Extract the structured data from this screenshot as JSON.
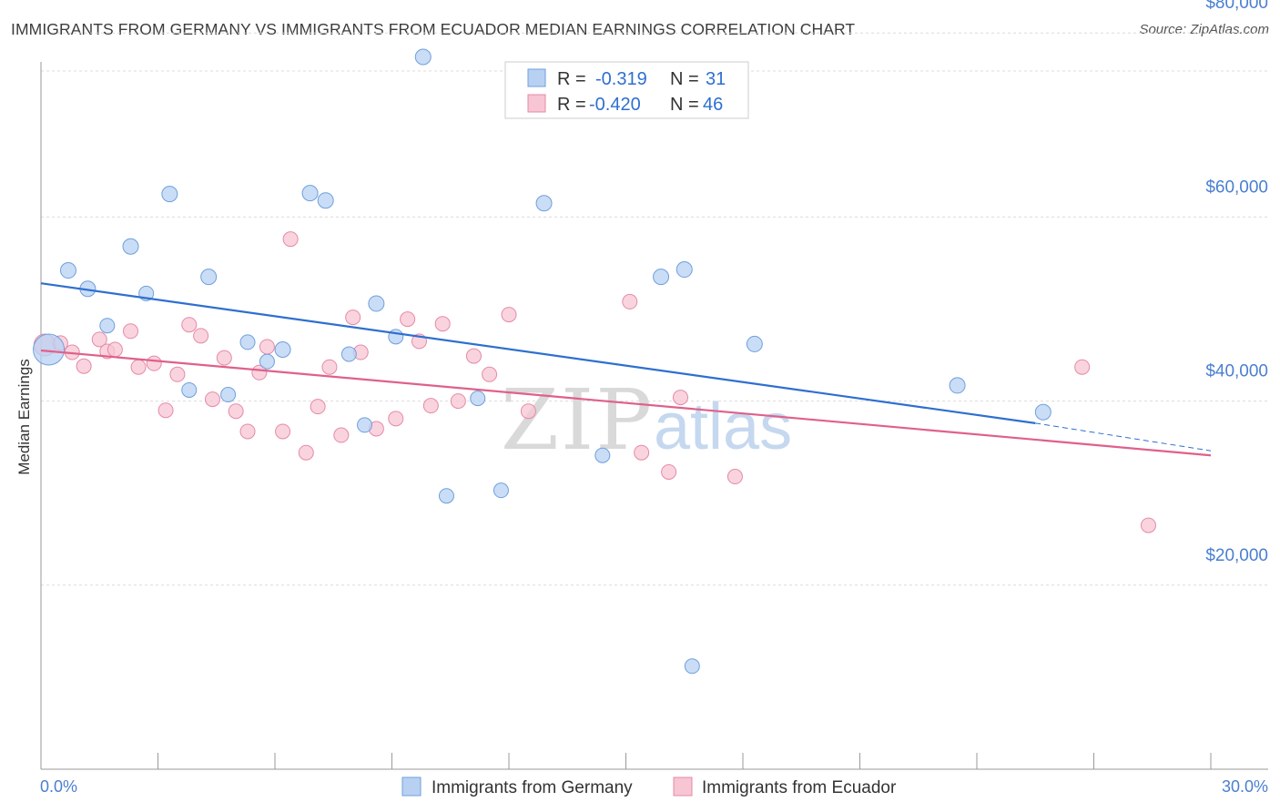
{
  "title": "IMMIGRANTS FROM GERMANY VS IMMIGRANTS FROM ECUADOR MEDIAN EARNINGS CORRELATION CHART",
  "source": "Source: ZipAtlas.com",
  "watermark": {
    "zip": "ZIP",
    "atlas": "atlas"
  },
  "colors": {
    "germany_fill": "#b8d1f3",
    "germany_stroke": "#6f9fdd",
    "germany_line": "#2e6fd0",
    "ecuador_fill": "#f7c5d3",
    "ecuador_stroke": "#e68aa6",
    "ecuador_line": "#e0608a",
    "axis_text": "#4a7fd1"
  },
  "legend": {
    "r_label": "R =",
    "n_label": "N =",
    "germany": {
      "r": "-0.319",
      "n": "31"
    },
    "ecuador": {
      "r": "-0.420",
      "n": "46"
    }
  },
  "chart_data": {
    "type": "scatter",
    "xlabel": "",
    "ylabel": "Median Earnings",
    "xlim": [
      0,
      30
    ],
    "ylim": [
      0,
      82000
    ],
    "x_tick_labels": [
      "0.0%",
      "30.0%"
    ],
    "y_ticks": [
      {
        "value": 20000,
        "label": "$20,000"
      },
      {
        "value": 40000,
        "label": "$40,000"
      },
      {
        "value": 60000,
        "label": "$60,000"
      },
      {
        "value": 80000,
        "label": "$80,000"
      }
    ],
    "grid": true,
    "series": [
      {
        "name": "Immigrants from Germany",
        "trend": {
          "x0": 0,
          "y0": 52800,
          "x1": 25.5,
          "y1": 37600,
          "dash_to_x": 30,
          "dash_to_y": 34600
        },
        "points": [
          [
            0.2,
            45600,
            32
          ],
          [
            0.7,
            54200,
            15
          ],
          [
            1.2,
            52200,
            15
          ],
          [
            1.7,
            48200,
            14
          ],
          [
            2.3,
            56800,
            15
          ],
          [
            2.7,
            51700,
            14
          ],
          [
            3.3,
            62500,
            15
          ],
          [
            3.8,
            41200,
            14
          ],
          [
            4.3,
            53500,
            15
          ],
          [
            4.8,
            40700,
            14
          ],
          [
            5.3,
            46400,
            14
          ],
          [
            5.8,
            44300,
            14
          ],
          [
            6.2,
            45600,
            15
          ],
          [
            6.9,
            62600,
            15
          ],
          [
            7.3,
            61800,
            15
          ],
          [
            7.9,
            45100,
            14
          ],
          [
            8.3,
            37400,
            14
          ],
          [
            8.6,
            50600,
            15
          ],
          [
            9.1,
            47000,
            14
          ],
          [
            9.8,
            77400,
            15
          ],
          [
            10.4,
            29700,
            14
          ],
          [
            11.2,
            40300,
            14
          ],
          [
            11.8,
            30300,
            14
          ],
          [
            12.9,
            61500,
            15
          ],
          [
            14.4,
            34100,
            14
          ],
          [
            15.9,
            53500,
            15
          ],
          [
            16.5,
            54300,
            15
          ],
          [
            16.7,
            11200,
            14
          ],
          [
            18.3,
            46200,
            15
          ],
          [
            23.5,
            41700,
            15
          ],
          [
            25.7,
            38800,
            15
          ]
        ]
      },
      {
        "name": "Immigrants from Ecuador",
        "trend": {
          "x0": 0,
          "y0": 45500,
          "x1": 30,
          "y1": 34100
        },
        "points": [
          [
            0.1,
            46100,
            22
          ],
          [
            0.5,
            46300,
            14
          ],
          [
            0.8,
            45300,
            14
          ],
          [
            1.1,
            43800,
            14
          ],
          [
            1.5,
            46700,
            14
          ],
          [
            1.7,
            45400,
            14
          ],
          [
            1.9,
            45600,
            14
          ],
          [
            2.3,
            47600,
            14
          ],
          [
            2.5,
            43700,
            14
          ],
          [
            2.9,
            44100,
            14
          ],
          [
            3.2,
            39000,
            14
          ],
          [
            3.5,
            42900,
            14
          ],
          [
            3.8,
            48300,
            14
          ],
          [
            4.1,
            47100,
            14
          ],
          [
            4.4,
            40200,
            14
          ],
          [
            4.7,
            44700,
            14
          ],
          [
            5.0,
            38900,
            14
          ],
          [
            5.3,
            36700,
            14
          ],
          [
            5.6,
            43100,
            14
          ],
          [
            5.8,
            45900,
            14
          ],
          [
            6.2,
            36700,
            14
          ],
          [
            6.4,
            57600,
            14
          ],
          [
            6.8,
            34400,
            14
          ],
          [
            7.1,
            39400,
            14
          ],
          [
            7.4,
            43700,
            14
          ],
          [
            7.7,
            36300,
            14
          ],
          [
            8.0,
            49100,
            14
          ],
          [
            8.2,
            45300,
            14
          ],
          [
            8.6,
            37000,
            14
          ],
          [
            9.1,
            38100,
            14
          ],
          [
            9.4,
            48900,
            14
          ],
          [
            9.7,
            46500,
            14
          ],
          [
            10.0,
            39500,
            14
          ],
          [
            10.3,
            48400,
            14
          ],
          [
            10.7,
            40000,
            14
          ],
          [
            11.1,
            44900,
            14
          ],
          [
            11.5,
            42900,
            14
          ],
          [
            12.0,
            49400,
            14
          ],
          [
            12.5,
            38900,
            14
          ],
          [
            15.1,
            50800,
            14
          ],
          [
            15.4,
            34400,
            14
          ],
          [
            16.1,
            32300,
            14
          ],
          [
            16.4,
            40400,
            14
          ],
          [
            17.8,
            31800,
            14
          ],
          [
            26.7,
            43700,
            14
          ],
          [
            28.4,
            26500,
            14
          ]
        ]
      }
    ]
  }
}
